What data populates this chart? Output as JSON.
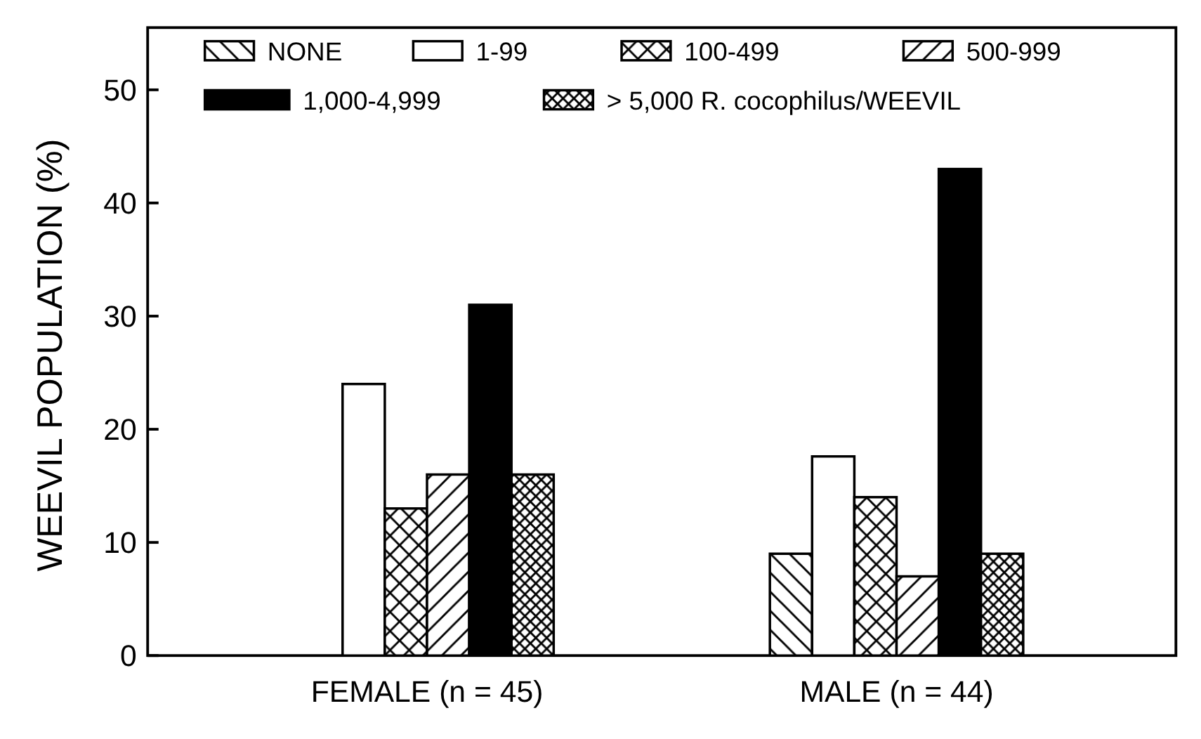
{
  "chart_data": {
    "type": "bar",
    "ylabel": "WEEVIL POPULATION (%)",
    "categories": [
      "FEMALE (n = 45)",
      "MALE (n = 44)"
    ],
    "series": [
      {
        "name": "NONE",
        "color": "#ffffff",
        "values": [
          0,
          9
        ]
      },
      {
        "name": "1-99",
        "color": "#ffffff",
        "values": [
          24,
          17.6
        ]
      },
      {
        "name": "100-499",
        "color": "#ffffff",
        "values": [
          13,
          14
        ]
      },
      {
        "name": "500-999",
        "color": "#ffffff",
        "values": [
          16,
          7
        ]
      },
      {
        "name": "1,000-4,999",
        "color": "#000000",
        "values": [
          31,
          43
        ]
      },
      {
        "name": "> 5,000 R. cocophilus/WEEVIL",
        "color": "#ffffff",
        "values": [
          16,
          9
        ]
      }
    ],
    "ylim": [
      0,
      55.5
    ],
    "yticks": [
      0,
      10,
      20,
      30,
      40,
      50
    ],
    "legend": "top",
    "grid": false
  }
}
